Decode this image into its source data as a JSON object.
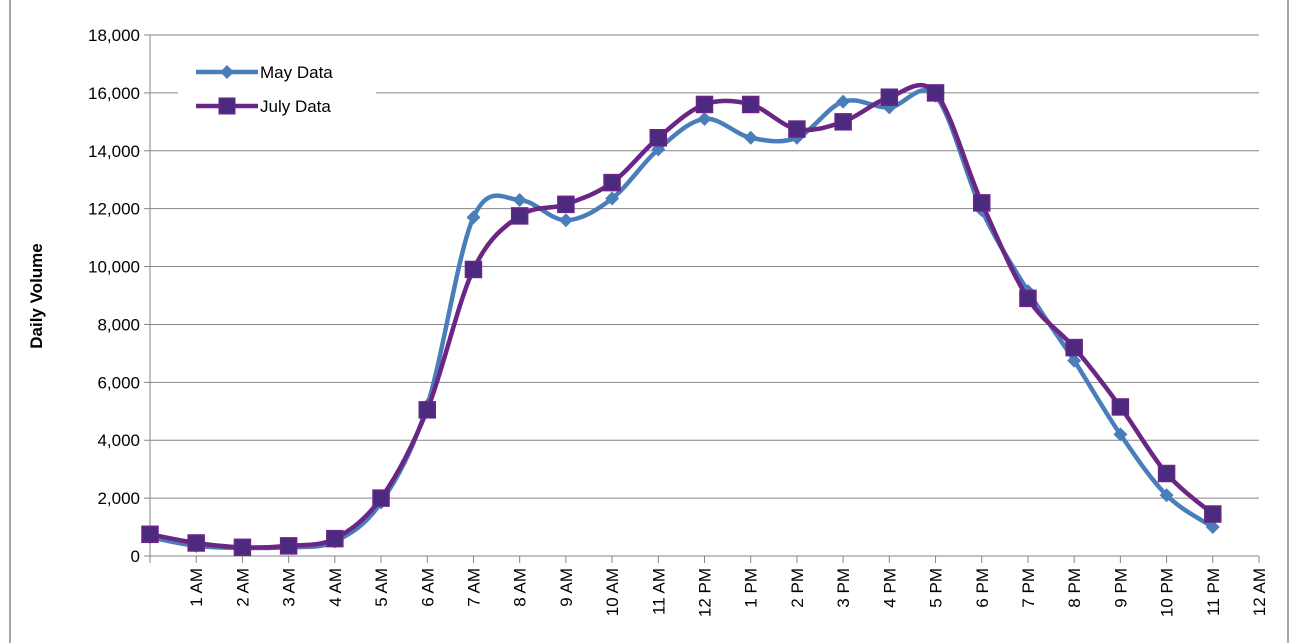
{
  "chart_data": {
    "type": "line",
    "y_label": "Daily Volume",
    "categories": [
      null,
      "1 AM",
      "2 AM",
      "3 AM",
      "4 AM",
      "5 AM",
      "6 AM",
      "7 AM",
      "8 AM",
      "9 AM",
      "10 AM",
      "11 AM",
      "12 PM",
      "1 PM",
      "2 PM",
      "3 PM",
      "4 PM",
      "5 PM",
      "6 PM",
      "7 PM",
      "8 PM",
      "9 PM",
      "10 PM",
      "11 PM",
      "12 AM"
    ],
    "series": [
      {
        "name": "May Data",
        "color": "#4a7ebb",
        "marker": "diamond",
        "values": [
          650,
          350,
          280,
          300,
          500,
          1850,
          5200,
          11700,
          12300,
          11600,
          12350,
          14050,
          15100,
          14450,
          14450,
          15700,
          15500,
          15900,
          11950,
          9150,
          6750,
          4200,
          2100,
          1000,
          null
        ]
      },
      {
        "name": "July Data",
        "color": "#6a2585",
        "marker": "square",
        "values": [
          750,
          450,
          300,
          350,
          600,
          2000,
          5050,
          9900,
          11750,
          12150,
          12900,
          14450,
          15600,
          15600,
          14750,
          15000,
          15850,
          16000,
          12200,
          8900,
          7200,
          5150,
          2850,
          1450,
          null
        ]
      }
    ],
    "ylim": [
      0,
      18000
    ],
    "yticks": [
      0,
      {
        "value": 2000,
        "label": "2,000"
      },
      {
        "value": 4000,
        "label": "4,000"
      },
      {
        "value": 6000,
        "label": "6,000"
      },
      {
        "value": 8000,
        "label": "8,000"
      },
      {
        "value": 10000,
        "label": "10,000"
      },
      {
        "value": 12000,
        "label": "12,000"
      },
      {
        "value": 14000,
        "label": "14,000"
      },
      {
        "value": 16000,
        "label": "16,000"
      },
      {
        "value": 18000,
        "label": "18,000"
      }
    ],
    "grid": true,
    "smooth": true,
    "legend": "top-left"
  }
}
